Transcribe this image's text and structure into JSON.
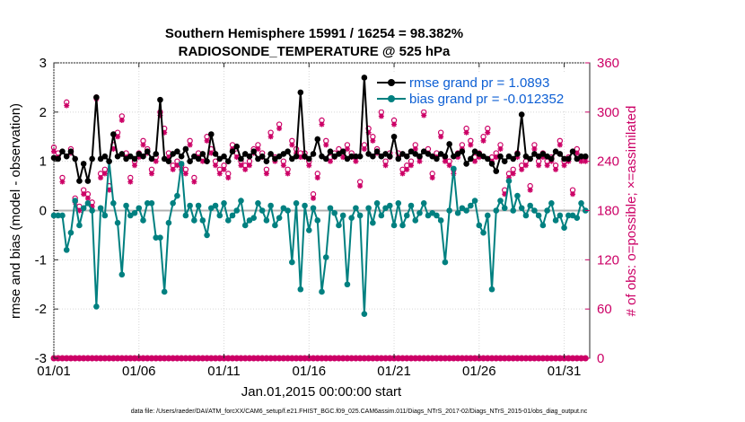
{
  "chart_data": {
    "type": "line",
    "title_line1": "Southern Hemisphere 15991 / 16254 = 98.382%",
    "title_line2": "RADIOSONDE_TEMPERATURE @ 525 hPa",
    "xlabel": "Jan.01,2015 00:00:00 start",
    "ylabel_left": "rmse and bias (model - observation)",
    "ylabel_right": "# of obs: o=possible; ×=assimilated",
    "footnote": "data file: /Users/raeder/DAI/ATM_forcXX/CAM6_setup/f.e21.FHIST_BGC.f09_025.CAM6assim.011/Diags_NTrS_2017-02/Diags_NTrS_2015-01/obs_diag_output.nc",
    "xlim": [
      0,
      31.5
    ],
    "ylim_left": [
      -3,
      3
    ],
    "ylim_right": [
      0,
      360
    ],
    "x_ticks": [
      0,
      5,
      10,
      15,
      20,
      25,
      30
    ],
    "x_tick_labels": [
      "01/01",
      "01/06",
      "01/11",
      "01/16",
      "01/21",
      "01/26",
      "01/31"
    ],
    "y_left_ticks": [
      -3,
      -2,
      -1,
      0,
      1,
      2,
      3
    ],
    "y_left_tick_labels": [
      "-3",
      "-2",
      "-1",
      "0",
      "1",
      "2",
      "3"
    ],
    "y_right_ticks": [
      0,
      60,
      120,
      180,
      240,
      300,
      360
    ],
    "y_right_tick_labels": [
      "0",
      "60",
      "120",
      "180",
      "240",
      "300",
      "360"
    ],
    "x": [
      0.0,
      0.25,
      0.5,
      0.75,
      1.0,
      1.25,
      1.5,
      1.75,
      2.0,
      2.25,
      2.5,
      2.75,
      3.0,
      3.25,
      3.5,
      3.75,
      4.0,
      4.25,
      4.5,
      4.75,
      5.0,
      5.25,
      5.5,
      5.75,
      6.0,
      6.25,
      6.5,
      6.75,
      7.0,
      7.25,
      7.5,
      7.75,
      8.0,
      8.25,
      8.5,
      8.75,
      9.0,
      9.25,
      9.5,
      9.75,
      10.0,
      10.25,
      10.5,
      10.75,
      11.0,
      11.25,
      11.5,
      11.75,
      12.0,
      12.25,
      12.5,
      12.75,
      13.0,
      13.25,
      13.5,
      13.75,
      14.0,
      14.25,
      14.5,
      14.75,
      15.0,
      15.25,
      15.5,
      15.75,
      16.0,
      16.25,
      16.5,
      16.75,
      17.0,
      17.25,
      17.5,
      17.75,
      18.0,
      18.25,
      18.5,
      18.75,
      19.0,
      19.25,
      19.5,
      19.75,
      20.0,
      20.25,
      20.5,
      20.75,
      21.0,
      21.25,
      21.5,
      21.75,
      22.0,
      22.25,
      22.5,
      22.75,
      23.0,
      23.25,
      23.5,
      23.75,
      24.0,
      24.25,
      24.5,
      24.75,
      25.0,
      25.25,
      25.5,
      25.75,
      26.0,
      26.25,
      26.5,
      26.75,
      27.0,
      27.25,
      27.5,
      27.75,
      28.0,
      28.25,
      28.5,
      28.75,
      29.0,
      29.25,
      29.5,
      29.75,
      30.0,
      30.25,
      30.5,
      30.75,
      31.0,
      31.25
    ],
    "series": [
      {
        "name": "rmse grand pr = 1.0893",
        "color": "#000000",
        "marker": "filled-circle",
        "values": [
          1.07,
          1.05,
          1.2,
          1.1,
          1.2,
          1.05,
          0.6,
          0.95,
          0.6,
          1.05,
          2.3,
          1.05,
          1.1,
          1.0,
          1.55,
          1.1,
          1.15,
          1.05,
          1.1,
          1.05,
          1.15,
          1.1,
          1.2,
          1.05,
          1.15,
          2.25,
          1.05,
          1.0,
          1.15,
          1.2,
          1.1,
          1.25,
          1.0,
          1.1,
          1.05,
          1.15,
          1.0,
          1.55,
          1.15,
          1.05,
          1.1,
          1.0,
          1.2,
          1.3,
          1.05,
          1.15,
          1.1,
          1.2,
          1.05,
          1.1,
          1.0,
          1.15,
          1.05,
          1.1,
          1.15,
          1.2,
          1.05,
          1.1,
          2.4,
          1.1,
          1.05,
          1.15,
          1.45,
          1.1,
          1.05,
          1.2,
          1.1,
          1.15,
          1.2,
          1.05,
          1.1,
          1.1,
          1.1,
          2.7,
          1.15,
          1.1,
          1.2,
          1.1,
          1.15,
          1.1,
          1.5,
          1.05,
          1.15,
          1.1,
          1.2,
          1.15,
          1.1,
          1.2,
          1.15,
          1.1,
          1.05,
          1.15,
          1.1,
          1.35,
          1.1,
          1.15,
          1.2,
          0.95,
          1.05,
          1.2,
          1.15,
          1.1,
          1.05,
          0.95,
          0.8,
          1.1,
          1.0,
          1.1,
          1.05,
          1.15,
          1.95,
          1.1,
          1.05,
          1.15,
          1.1,
          1.15,
          1.1,
          1.05,
          1.2,
          1.15,
          1.05,
          1.05,
          1.2,
          1.05,
          1.1,
          1.1
        ]
      },
      {
        "name": "bias grand pr = -0.012352",
        "color": "#008080",
        "marker": "filled-circle",
        "values": [
          -0.1,
          -0.1,
          -0.1,
          -0.8,
          -0.45,
          0.2,
          -0.3,
          0.05,
          0.15,
          0.0,
          -1.95,
          0.05,
          -0.1,
          1.0,
          0.15,
          -0.25,
          -1.3,
          0.1,
          -0.1,
          -0.05,
          0.05,
          -0.2,
          0.15,
          0.15,
          -0.55,
          -0.55,
          -1.65,
          -0.25,
          0.15,
          0.3,
          0.95,
          -0.1,
          0.1,
          -0.2,
          0.1,
          -0.2,
          -0.5,
          0.05,
          0.1,
          -0.1,
          0.15,
          -0.2,
          -0.1,
          0.0,
          0.2,
          -0.3,
          -0.2,
          -0.15,
          0.15,
          0.0,
          -0.2,
          0.1,
          -0.3,
          -0.15,
          0.05,
          0.0,
          -1.05,
          0.15,
          -1.6,
          0.1,
          -0.4,
          0.05,
          -0.2,
          -1.65,
          -0.95,
          0.05,
          -0.05,
          -0.3,
          -0.1,
          -1.5,
          -0.15,
          0.05,
          -0.1,
          -2.1,
          0.05,
          -0.25,
          0.15,
          -0.1,
          0.05,
          0.1,
          -0.3,
          0.15,
          -0.3,
          -0.1,
          0.1,
          -0.2,
          -0.05,
          0.15,
          -0.1,
          -0.05,
          -0.1,
          -0.2,
          -1.05,
          0.0,
          0.85,
          -0.05,
          0.05,
          0.0,
          0.1,
          0.2,
          -0.3,
          -0.45,
          -0.1,
          -1.6,
          0.0,
          0.2,
          0.05,
          0.6,
          0.0,
          0.3,
          0.05,
          -0.1,
          0.1,
          0.0,
          -0.1,
          -0.3,
          0.0,
          0.15,
          -0.2,
          -0.1,
          -0.35,
          -0.1,
          -0.1,
          -0.15,
          0.15,
          0.0
        ]
      }
    ],
    "obs_possible": {
      "name": "o=possible",
      "color": "#cc0066",
      "values": [
        257,
        250,
        220,
        312,
        255,
        195,
        185,
        205,
        200,
        190,
        318,
        225,
        230,
        210,
        260,
        275,
        295,
        250,
        220,
        240,
        250,
        265,
        255,
        230,
        245,
        300,
        280,
        250,
        235,
        240,
        235,
        230,
        265,
        220,
        250,
        245,
        270,
        255,
        240,
        230,
        235,
        225,
        260,
        250,
        240,
        235,
        240,
        255,
        260,
        250,
        230,
        275,
        245,
        285,
        240,
        230,
        265,
        255,
        250,
        250,
        240,
        200,
        225,
        290,
        265,
        245,
        250,
        255,
        250,
        260,
        250,
        245,
        215,
        260,
        280,
        270,
        255,
        300,
        240,
        250,
        290,
        250,
        230,
        235,
        240,
        260,
        245,
        300,
        255,
        225,
        250,
        275,
        245,
        240,
        230,
        250,
        260,
        280,
        265,
        245,
        250,
        270,
        280,
        245,
        250,
        260,
        205,
        225,
        230,
        250,
        235,
        240,
        210,
        260,
        240,
        250,
        240,
        245,
        235,
        265,
        240,
        245,
        205,
        255,
        245,
        245,
        250,
        255
      ]
    },
    "obs_assimilated": {
      "name": "×=assimilated",
      "color": "#cc0066",
      "values": [
        252,
        245,
        215,
        308,
        250,
        190,
        180,
        200,
        195,
        185,
        316,
        220,
        225,
        205,
        255,
        270,
        290,
        245,
        215,
        235,
        245,
        260,
        250,
        225,
        240,
        296,
        275,
        245,
        230,
        235,
        230,
        225,
        260,
        215,
        245,
        240,
        265,
        250,
        235,
        225,
        230,
        220,
        255,
        245,
        235,
        230,
        235,
        250,
        255,
        245,
        225,
        270,
        240,
        280,
        235,
        225,
        260,
        250,
        245,
        245,
        235,
        195,
        220,
        285,
        260,
        240,
        245,
        250,
        245,
        255,
        245,
        240,
        210,
        255,
        275,
        265,
        250,
        295,
        235,
        245,
        285,
        245,
        225,
        230,
        235,
        255,
        240,
        296,
        250,
        220,
        245,
        270,
        240,
        235,
        225,
        245,
        255,
        275,
        260,
        240,
        245,
        265,
        275,
        240,
        245,
        255,
        200,
        220,
        225,
        245,
        230,
        235,
        205,
        255,
        235,
        245,
        235,
        240,
        230,
        260,
        235,
        240,
        200,
        250,
        240,
        240,
        245,
        250
      ]
    },
    "obs_bottom": {
      "values_right_axis": 0
    }
  }
}
